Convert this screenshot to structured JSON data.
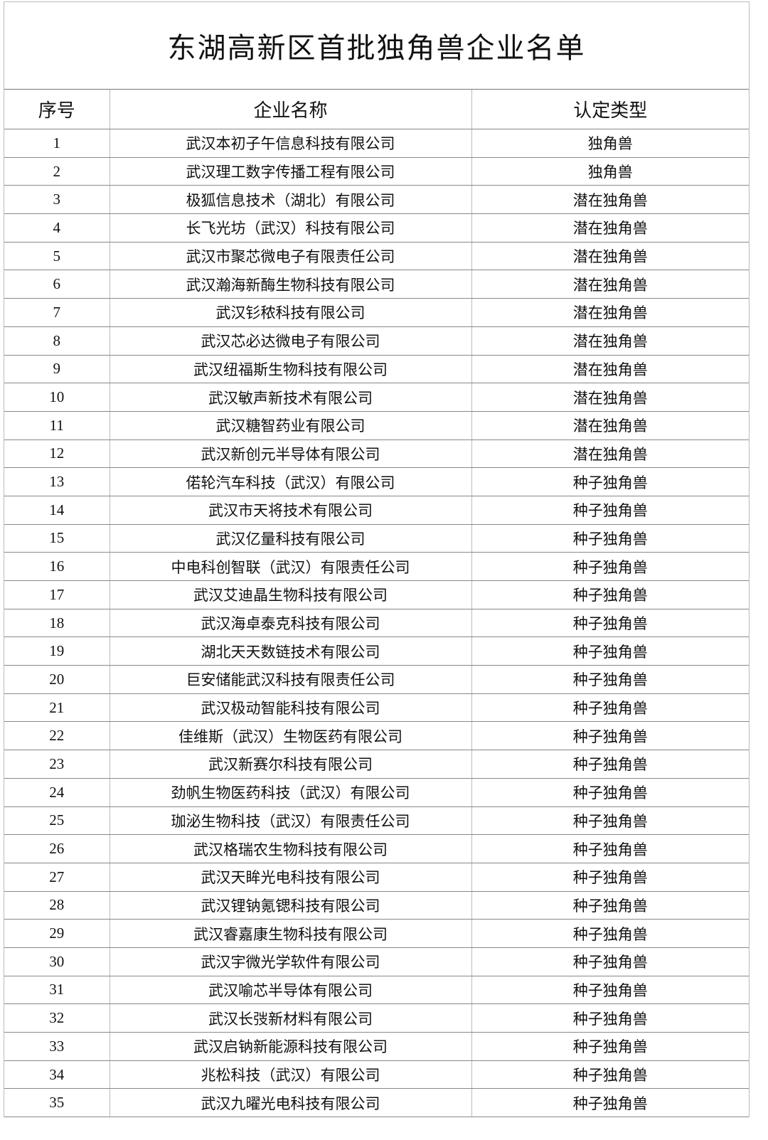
{
  "title": "东湖高新区首批独角兽企业名单",
  "headers": [
    "序号",
    "企业名称",
    "认定类型"
  ],
  "rows": [
    [
      "1",
      "武汉本初子午信息科技有限公司",
      "独角兽"
    ],
    [
      "2",
      "武汉理工数字传播工程有限公司",
      "独角兽"
    ],
    [
      "3",
      "极狐信息技术（湖北）有限公司",
      "潜在独角兽"
    ],
    [
      "4",
      "长飞光坊（武汉）科技有限公司",
      "潜在独角兽"
    ],
    [
      "5",
      "武汉市聚芯微电子有限责任公司",
      "潜在独角兽"
    ],
    [
      "6",
      "武汉瀚海新酶生物科技有限公司",
      "潜在独角兽"
    ],
    [
      "7",
      "武汉钐秾科技有限公司",
      "潜在独角兽"
    ],
    [
      "8",
      "武汉芯必达微电子有限公司",
      "潜在独角兽"
    ],
    [
      "9",
      "武汉纽福斯生物科技有限公司",
      "潜在独角兽"
    ],
    [
      "10",
      "武汉敏声新技术有限公司",
      "潜在独角兽"
    ],
    [
      "11",
      "武汉糖智药业有限公司",
      "潜在独角兽"
    ],
    [
      "12",
      "武汉新创元半导体有限公司",
      "潜在独角兽"
    ],
    [
      "13",
      "偌轮汽车科技（武汉）有限公司",
      "种子独角兽"
    ],
    [
      "14",
      "武汉市天将技术有限公司",
      "种子独角兽"
    ],
    [
      "15",
      "武汉亿量科技有限公司",
      "种子独角兽"
    ],
    [
      "16",
      "中电科创智联（武汉）有限责任公司",
      "种子独角兽"
    ],
    [
      "17",
      "武汉艾迪晶生物科技有限公司",
      "种子独角兽"
    ],
    [
      "18",
      "武汉海卓泰克科技有限公司",
      "种子独角兽"
    ],
    [
      "19",
      "湖北天天数链技术有限公司",
      "种子独角兽"
    ],
    [
      "20",
      "巨安储能武汉科技有限责任公司",
      "种子独角兽"
    ],
    [
      "21",
      "武汉极动智能科技有限公司",
      "种子独角兽"
    ],
    [
      "22",
      "佳维斯（武汉）生物医药有限公司",
      "种子独角兽"
    ],
    [
      "23",
      "武汉新赛尔科技有限公司",
      "种子独角兽"
    ],
    [
      "24",
      "劲帆生物医药科技（武汉）有限公司",
      "种子独角兽"
    ],
    [
      "25",
      "珈泌生物科技（武汉）有限责任公司",
      "种子独角兽"
    ],
    [
      "26",
      "武汉格瑞农生物科技有限公司",
      "种子独角兽"
    ],
    [
      "27",
      "武汉天眸光电科技有限公司",
      "种子独角兽"
    ],
    [
      "28",
      "武汉锂钠氪锶科技有限公司",
      "种子独角兽"
    ],
    [
      "29",
      "武汉睿嘉康生物科技有限公司",
      "种子独角兽"
    ],
    [
      "30",
      "武汉宇微光学软件有限公司",
      "种子独角兽"
    ],
    [
      "31",
      "武汉喻芯半导体有限公司",
      "种子独角兽"
    ],
    [
      "32",
      "武汉长弢新材料有限公司",
      "种子独角兽"
    ],
    [
      "33",
      "武汉启钠新能源科技有限公司",
      "种子独角兽"
    ],
    [
      "34",
      "兆松科技（武汉）有限公司",
      "种子独角兽"
    ],
    [
      "35",
      "武汉九曜光电科技有限公司",
      "种子独角兽"
    ]
  ]
}
